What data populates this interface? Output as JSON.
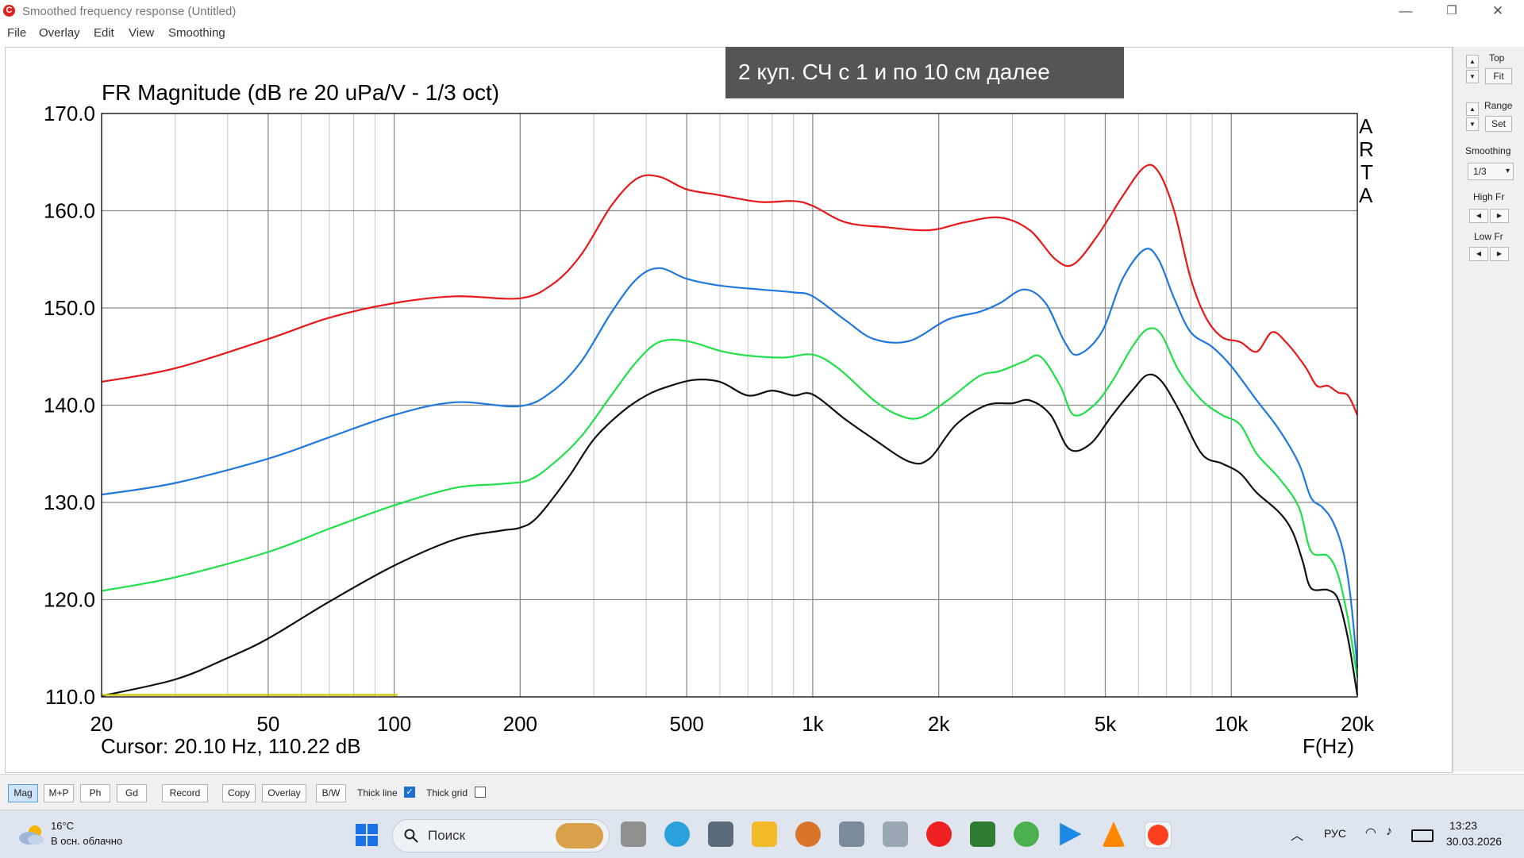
{
  "window": {
    "title": "Smoothed frequency response (Untitled)",
    "min_glyph": "—",
    "max_glyph": "❐",
    "close_glyph": "✕",
    "icon": "arta-logo-icon"
  },
  "menu": [
    "File",
    "Overlay",
    "Edit",
    "View",
    "Smoothing"
  ],
  "chart_data": {
    "type": "line",
    "title": "FR Magnitude (dB re 20 uPa/V - 1/3 oct)",
    "annotation": "2 куп. СЧ с 1 и по 10 см далее",
    "watermark": [
      "A",
      "R",
      "T",
      "A"
    ],
    "xlabel": "F(Hz)",
    "xscale": "log",
    "xlim": [
      20,
      20000
    ],
    "ylim": [
      110,
      170
    ],
    "xticks": [
      20,
      50,
      100,
      200,
      500,
      1000,
      2000,
      5000,
      10000,
      20000
    ],
    "xtick_labels": [
      "20",
      "50",
      "100",
      "200",
      "500",
      "1k",
      "2k",
      "5k",
      "10k",
      "20k"
    ],
    "yticks": [
      110,
      120,
      130,
      140,
      150,
      160,
      170
    ],
    "ytick_labels": [
      "110.0",
      "120.0",
      "130.0",
      "140.0",
      "150.0",
      "160.0",
      "170.0"
    ],
    "grid": true,
    "cursor_readout": "Cursor: 20.10 Hz, 110.22 dB",
    "series": [
      {
        "color": "#e81818",
        "points": [
          [
            20,
            142.4
          ],
          [
            30,
            143.8
          ],
          [
            50,
            146.8
          ],
          [
            70,
            149.0
          ],
          [
            100,
            150.5
          ],
          [
            140,
            151.2
          ],
          [
            200,
            151.0
          ],
          [
            240,
            152.5
          ],
          [
            280,
            155.5
          ],
          [
            330,
            160.5
          ],
          [
            380,
            163.3
          ],
          [
            430,
            163.5
          ],
          [
            500,
            162.2
          ],
          [
            600,
            161.6
          ],
          [
            750,
            160.9
          ],
          [
            900,
            161.0
          ],
          [
            1000,
            160.5
          ],
          [
            1200,
            158.8
          ],
          [
            1500,
            158.3
          ],
          [
            1900,
            158.0
          ],
          [
            2300,
            158.8
          ],
          [
            2800,
            159.3
          ],
          [
            3300,
            158.0
          ],
          [
            3800,
            155.0
          ],
          [
            4200,
            154.5
          ],
          [
            4800,
            157.5
          ],
          [
            5500,
            161.5
          ],
          [
            6200,
            164.5
          ],
          [
            6700,
            164.0
          ],
          [
            7300,
            160.0
          ],
          [
            8000,
            153.0
          ],
          [
            8700,
            149.0
          ],
          [
            9500,
            147.0
          ],
          [
            10500,
            146.5
          ],
          [
            11500,
            145.5
          ],
          [
            12500,
            147.5
          ],
          [
            13500,
            146.5
          ],
          [
            15000,
            144.0
          ],
          [
            16000,
            142.0
          ],
          [
            17000,
            142.0
          ],
          [
            18000,
            141.3
          ],
          [
            19000,
            141.0
          ],
          [
            20000,
            139.0
          ]
        ]
      },
      {
        "color": "#1f78e0",
        "points": [
          [
            20,
            130.8
          ],
          [
            30,
            132.0
          ],
          [
            50,
            134.5
          ],
          [
            70,
            136.7
          ],
          [
            100,
            139.0
          ],
          [
            140,
            140.3
          ],
          [
            200,
            139.9
          ],
          [
            240,
            141.5
          ],
          [
            280,
            144.5
          ],
          [
            330,
            149.5
          ],
          [
            380,
            153.0
          ],
          [
            430,
            154.1
          ],
          [
            500,
            153.0
          ],
          [
            600,
            152.3
          ],
          [
            750,
            151.9
          ],
          [
            900,
            151.6
          ],
          [
            1000,
            151.2
          ],
          [
            1200,
            148.7
          ],
          [
            1400,
            146.8
          ],
          [
            1700,
            146.6
          ],
          [
            2100,
            148.8
          ],
          [
            2500,
            149.6
          ],
          [
            2800,
            150.5
          ],
          [
            3200,
            151.9
          ],
          [
            3600,
            150.5
          ],
          [
            4000,
            146.5
          ],
          [
            4300,
            145.2
          ],
          [
            4900,
            147.5
          ],
          [
            5500,
            153.0
          ],
          [
            6200,
            156.0
          ],
          [
            6700,
            155.0
          ],
          [
            7300,
            151.0
          ],
          [
            8000,
            147.5
          ],
          [
            9000,
            146.0
          ],
          [
            10000,
            144.0
          ],
          [
            11500,
            140.5
          ],
          [
            13000,
            137.5
          ],
          [
            14500,
            134.0
          ],
          [
            15500,
            130.5
          ],
          [
            16500,
            129.5
          ],
          [
            17500,
            128.0
          ],
          [
            18500,
            125.0
          ],
          [
            19300,
            120.0
          ],
          [
            20000,
            113.0
          ]
        ]
      },
      {
        "color": "#1fe048",
        "points": [
          [
            20,
            120.9
          ],
          [
            30,
            122.3
          ],
          [
            50,
            124.9
          ],
          [
            70,
            127.3
          ],
          [
            100,
            129.7
          ],
          [
            140,
            131.5
          ],
          [
            180,
            131.9
          ],
          [
            210,
            132.3
          ],
          [
            240,
            134.0
          ],
          [
            280,
            136.8
          ],
          [
            330,
            141.0
          ],
          [
            380,
            144.5
          ],
          [
            430,
            146.5
          ],
          [
            500,
            146.6
          ],
          [
            600,
            145.6
          ],
          [
            700,
            145.1
          ],
          [
            850,
            144.9
          ],
          [
            1000,
            145.2
          ],
          [
            1150,
            143.8
          ],
          [
            1400,
            140.5
          ],
          [
            1600,
            139.0
          ],
          [
            1800,
            138.7
          ],
          [
            2100,
            140.5
          ],
          [
            2500,
            143.0
          ],
          [
            2800,
            143.5
          ],
          [
            3200,
            144.5
          ],
          [
            3500,
            145.0
          ],
          [
            3900,
            142.0
          ],
          [
            4200,
            139.0
          ],
          [
            4700,
            140.0
          ],
          [
            5200,
            142.5
          ],
          [
            5800,
            146.0
          ],
          [
            6300,
            147.8
          ],
          [
            6800,
            147.3
          ],
          [
            7500,
            143.5
          ],
          [
            8500,
            140.5
          ],
          [
            9500,
            139.0
          ],
          [
            10500,
            138.0
          ],
          [
            11500,
            135.0
          ],
          [
            13000,
            132.5
          ],
          [
            14500,
            129.5
          ],
          [
            15500,
            125.0
          ],
          [
            17000,
            124.5
          ],
          [
            18000,
            122.5
          ],
          [
            19000,
            118.0
          ],
          [
            20000,
            112.0
          ]
        ]
      },
      {
        "color": "#111111",
        "points": [
          [
            20,
            110.1
          ],
          [
            30,
            111.8
          ],
          [
            40,
            114.0
          ],
          [
            50,
            116.0
          ],
          [
            70,
            119.8
          ],
          [
            100,
            123.5
          ],
          [
            140,
            126.2
          ],
          [
            180,
            127.1
          ],
          [
            200,
            127.4
          ],
          [
            220,
            128.5
          ],
          [
            260,
            132.5
          ],
          [
            300,
            136.5
          ],
          [
            350,
            139.3
          ],
          [
            400,
            141.0
          ],
          [
            450,
            141.9
          ],
          [
            520,
            142.6
          ],
          [
            600,
            142.4
          ],
          [
            700,
            141.0
          ],
          [
            800,
            141.5
          ],
          [
            900,
            141.0
          ],
          [
            1000,
            141.1
          ],
          [
            1200,
            138.5
          ],
          [
            1400,
            136.5
          ],
          [
            1700,
            134.2
          ],
          [
            1900,
            134.5
          ],
          [
            2200,
            138.0
          ],
          [
            2600,
            140.0
          ],
          [
            3000,
            140.2
          ],
          [
            3300,
            140.5
          ],
          [
            3700,
            139.0
          ],
          [
            4100,
            135.5
          ],
          [
            4600,
            136.0
          ],
          [
            5200,
            139.0
          ],
          [
            5800,
            141.5
          ],
          [
            6300,
            143.1
          ],
          [
            6800,
            142.5
          ],
          [
            7500,
            139.5
          ],
          [
            8500,
            135.0
          ],
          [
            9500,
            134.0
          ],
          [
            10500,
            133.0
          ],
          [
            11500,
            131.0
          ],
          [
            13000,
            129.0
          ],
          [
            14000,
            127.0
          ],
          [
            14800,
            124.0
          ],
          [
            15500,
            121.2
          ],
          [
            17000,
            121.0
          ],
          [
            18000,
            120.0
          ],
          [
            19000,
            116.0
          ],
          [
            20000,
            110.2
          ]
        ]
      },
      {
        "color": "#c8c800",
        "points": [
          [
            20,
            110.2
          ],
          [
            102,
            110.2
          ]
        ]
      }
    ]
  },
  "right_panel": {
    "top_label": "Top",
    "fit_label": "Fit",
    "range_label": "Range",
    "set_label": "Set",
    "smoothing_label": "Smoothing",
    "smoothing_value": "1/3",
    "highfr_label": "High Fr",
    "lowfr_label": "Low Fr"
  },
  "toolbar": {
    "buttons": [
      "Mag",
      "M+P",
      "Ph",
      "Gd",
      "Record",
      "Copy",
      "Overlay",
      "B/W"
    ],
    "thick_line_label": "Thick line",
    "thick_line_checked": true,
    "thick_grid_label": "Thick grid",
    "thick_grid_checked": false
  },
  "taskbar": {
    "weather_temp": "16°C",
    "weather_desc": "В осн. облачно",
    "search_placeholder": "Поиск",
    "lang": "РУС",
    "time": "13:23",
    "date": "30.03.2026"
  }
}
